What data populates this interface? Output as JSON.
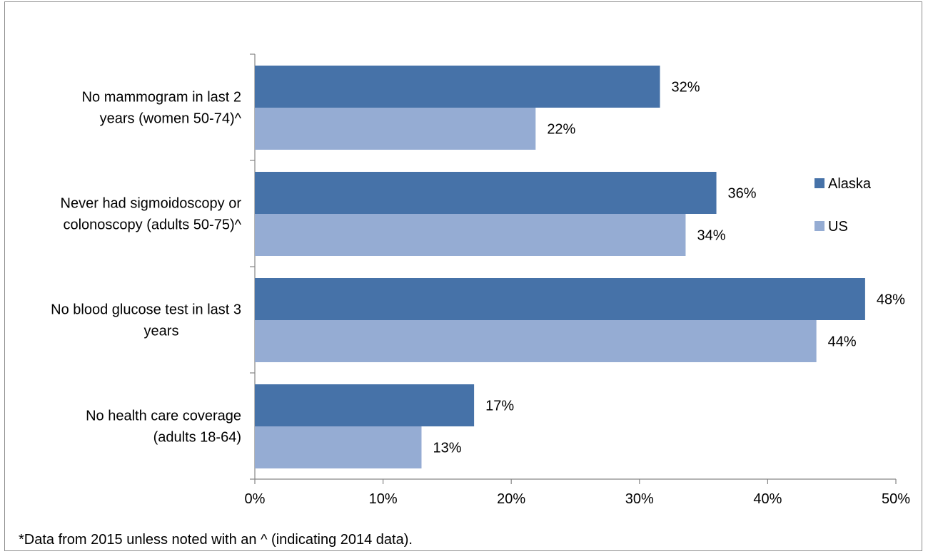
{
  "chart_data": {
    "type": "bar",
    "orientation": "horizontal",
    "categories": [
      "No mammogram in last 2 years (women 50-74)^",
      "Never had sigmoidoscopy or colonoscopy (adults 50-75)^",
      "No blood glucose test in last 3 years",
      "No health care coverage (adults 18-64)"
    ],
    "category_lines": [
      [
        "No mammogram in last 2",
        "years (women 50-74)^"
      ],
      [
        "Never had sigmoidoscopy or",
        "colonoscopy (adults 50-75)^"
      ],
      [
        "No blood glucose test in last 3",
        "years"
      ],
      [
        "No health care coverage",
        "(adults 18-64)"
      ]
    ],
    "series": [
      {
        "name": "Alaska",
        "color": "#4672a8",
        "values": [
          31.6,
          36.0,
          47.6,
          17.1
        ],
        "labels": [
          "32%",
          "36%",
          "48%",
          "17%"
        ]
      },
      {
        "name": "US",
        "color": "#95acd3",
        "values": [
          21.9,
          33.6,
          43.8,
          13.0
        ],
        "labels": [
          "22%",
          "34%",
          "44%",
          "13%"
        ]
      }
    ],
    "xlim": [
      0,
      50
    ],
    "xticks": [
      "0%",
      "10%",
      "20%",
      "30%",
      "40%",
      "50%"
    ],
    "grid": false,
    "legend_position": "right",
    "xlabel": "",
    "ylabel": ""
  },
  "footnote": "*Data from 2015 unless noted with an ^ (indicating 2014 data)."
}
